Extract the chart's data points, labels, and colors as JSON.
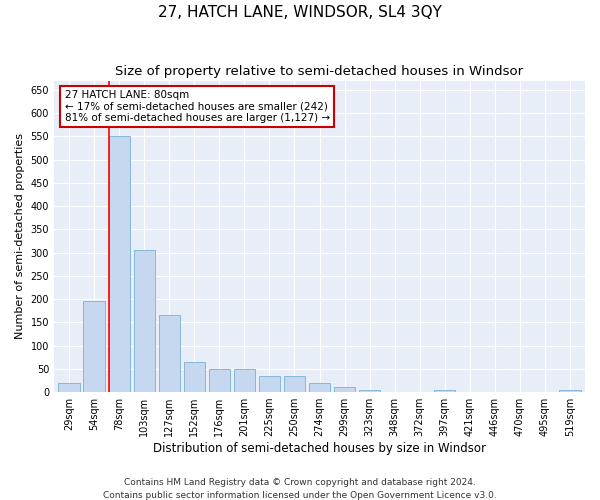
{
  "title": "27, HATCH LANE, WINDSOR, SL4 3QY",
  "subtitle": "Size of property relative to semi-detached houses in Windsor",
  "xlabel": "Distribution of semi-detached houses by size in Windsor",
  "ylabel": "Number of semi-detached properties",
  "categories": [
    "29sqm",
    "54sqm",
    "78sqm",
    "103sqm",
    "127sqm",
    "152sqm",
    "176sqm",
    "201sqm",
    "225sqm",
    "250sqm",
    "274sqm",
    "299sqm",
    "323sqm",
    "348sqm",
    "372sqm",
    "397sqm",
    "421sqm",
    "446sqm",
    "470sqm",
    "495sqm",
    "519sqm"
  ],
  "values": [
    20,
    195,
    550,
    305,
    165,
    65,
    50,
    50,
    35,
    35,
    20,
    10,
    5,
    1,
    1,
    5,
    1,
    1,
    1,
    1,
    5
  ],
  "bar_color": "#c5d8ef",
  "bar_edge_color": "#7aafd4",
  "background_color": "#e8eef8",
  "red_line_index": 2,
  "red_line_label": "27 HATCH LANE: 80sqm",
  "annotation_smaller": "← 17% of semi-detached houses are smaller (242)",
  "annotation_larger": "81% of semi-detached houses are larger (1,127) →",
  "annotation_box_color": "#ffffff",
  "annotation_box_edge": "#cc0000",
  "ylim": [
    0,
    670
  ],
  "yticks": [
    0,
    50,
    100,
    150,
    200,
    250,
    300,
    350,
    400,
    450,
    500,
    550,
    600,
    650
  ],
  "footer1": "Contains HM Land Registry data © Crown copyright and database right 2024.",
  "footer2": "Contains public sector information licensed under the Open Government Licence v3.0.",
  "title_fontsize": 11,
  "subtitle_fontsize": 9.5,
  "xlabel_fontsize": 8.5,
  "ylabel_fontsize": 8,
  "tick_fontsize": 7,
  "footer_fontsize": 6.5,
  "annotation_fontsize": 7.5
}
